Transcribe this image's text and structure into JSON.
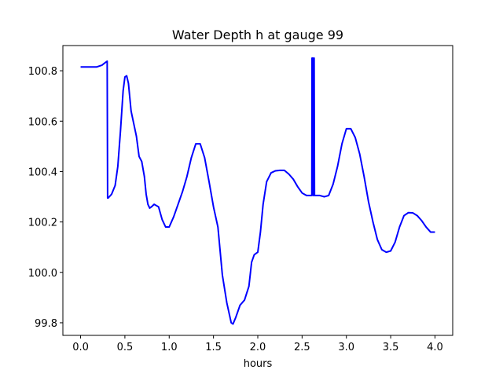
{
  "chart_data": {
    "type": "line",
    "title": "Water Depth h at gauge 99",
    "xlabel": "hours",
    "ylabel": "",
    "xlim": [
      -0.2,
      4.2
    ],
    "ylim": [
      99.75,
      100.9
    ],
    "xticks": [
      0.0,
      0.5,
      1.0,
      1.5,
      2.0,
      2.5,
      3.0,
      3.5,
      4.0
    ],
    "xtick_labels": [
      "0.0",
      "0.5",
      "1.0",
      "1.5",
      "2.0",
      "2.5",
      "3.0",
      "3.5",
      "4.0"
    ],
    "yticks": [
      99.8,
      100.0,
      100.2,
      100.4,
      100.6,
      100.8
    ],
    "ytick_labels": [
      "99.8",
      "100.0",
      "100.2",
      "100.4",
      "100.6",
      "100.8"
    ],
    "grid": false,
    "series": [
      {
        "color": "#0000ff",
        "x": [
          0.0,
          0.1,
          0.18,
          0.24,
          0.27,
          0.3,
          0.305,
          0.31,
          0.35,
          0.39,
          0.42,
          0.45,
          0.48,
          0.5,
          0.52,
          0.54,
          0.57,
          0.6,
          0.63,
          0.66,
          0.69,
          0.72,
          0.74,
          0.76,
          0.78,
          0.8,
          0.83,
          0.88,
          0.92,
          0.96,
          1.0,
          1.05,
          1.1,
          1.15,
          1.2,
          1.25,
          1.3,
          1.35,
          1.4,
          1.45,
          1.5,
          1.55,
          1.6,
          1.65,
          1.7,
          1.72,
          1.75,
          1.8,
          1.85,
          1.9,
          1.93,
          1.96,
          2.0,
          2.03,
          2.06,
          2.1,
          2.15,
          2.2,
          2.25,
          2.3,
          2.35,
          2.4,
          2.45,
          2.5,
          2.55,
          2.6,
          2.61,
          2.612,
          2.62,
          2.625,
          2.628,
          2.632,
          2.636,
          2.64,
          2.7,
          2.75,
          2.8,
          2.85,
          2.9,
          2.95,
          3.0,
          3.05,
          3.1,
          3.15,
          3.2,
          3.25,
          3.3,
          3.35,
          3.4,
          3.45,
          3.5,
          3.55,
          3.6,
          3.65,
          3.7,
          3.75,
          3.8,
          3.85,
          3.9,
          3.95,
          4.0
        ],
        "y": [
          100.815,
          100.815,
          100.815,
          100.822,
          100.83,
          100.838,
          100.295,
          100.295,
          100.31,
          100.345,
          100.42,
          100.56,
          100.72,
          100.775,
          100.78,
          100.75,
          100.64,
          100.59,
          100.54,
          100.46,
          100.44,
          100.38,
          100.31,
          100.27,
          100.255,
          100.26,
          100.27,
          100.26,
          100.21,
          100.18,
          100.18,
          100.22,
          100.27,
          100.32,
          100.38,
          100.455,
          100.51,
          100.51,
          100.455,
          100.36,
          100.26,
          100.18,
          99.99,
          99.88,
          99.8,
          99.795,
          99.82,
          99.87,
          99.89,
          99.945,
          100.04,
          100.07,
          100.08,
          100.16,
          100.27,
          100.36,
          100.395,
          100.403,
          100.405,
          100.405,
          100.39,
          100.37,
          100.34,
          100.315,
          100.305,
          100.305,
          100.305,
          100.85,
          100.85,
          100.305,
          100.305,
          100.85,
          100.85,
          100.305,
          100.305,
          100.3,
          100.305,
          100.35,
          100.42,
          100.51,
          100.57,
          100.57,
          100.535,
          100.47,
          100.38,
          100.28,
          100.2,
          100.13,
          100.09,
          100.08,
          100.085,
          100.12,
          100.18,
          100.225,
          100.237,
          100.236,
          100.225,
          100.205,
          100.18,
          100.16,
          100.16
        ]
      }
    ]
  }
}
